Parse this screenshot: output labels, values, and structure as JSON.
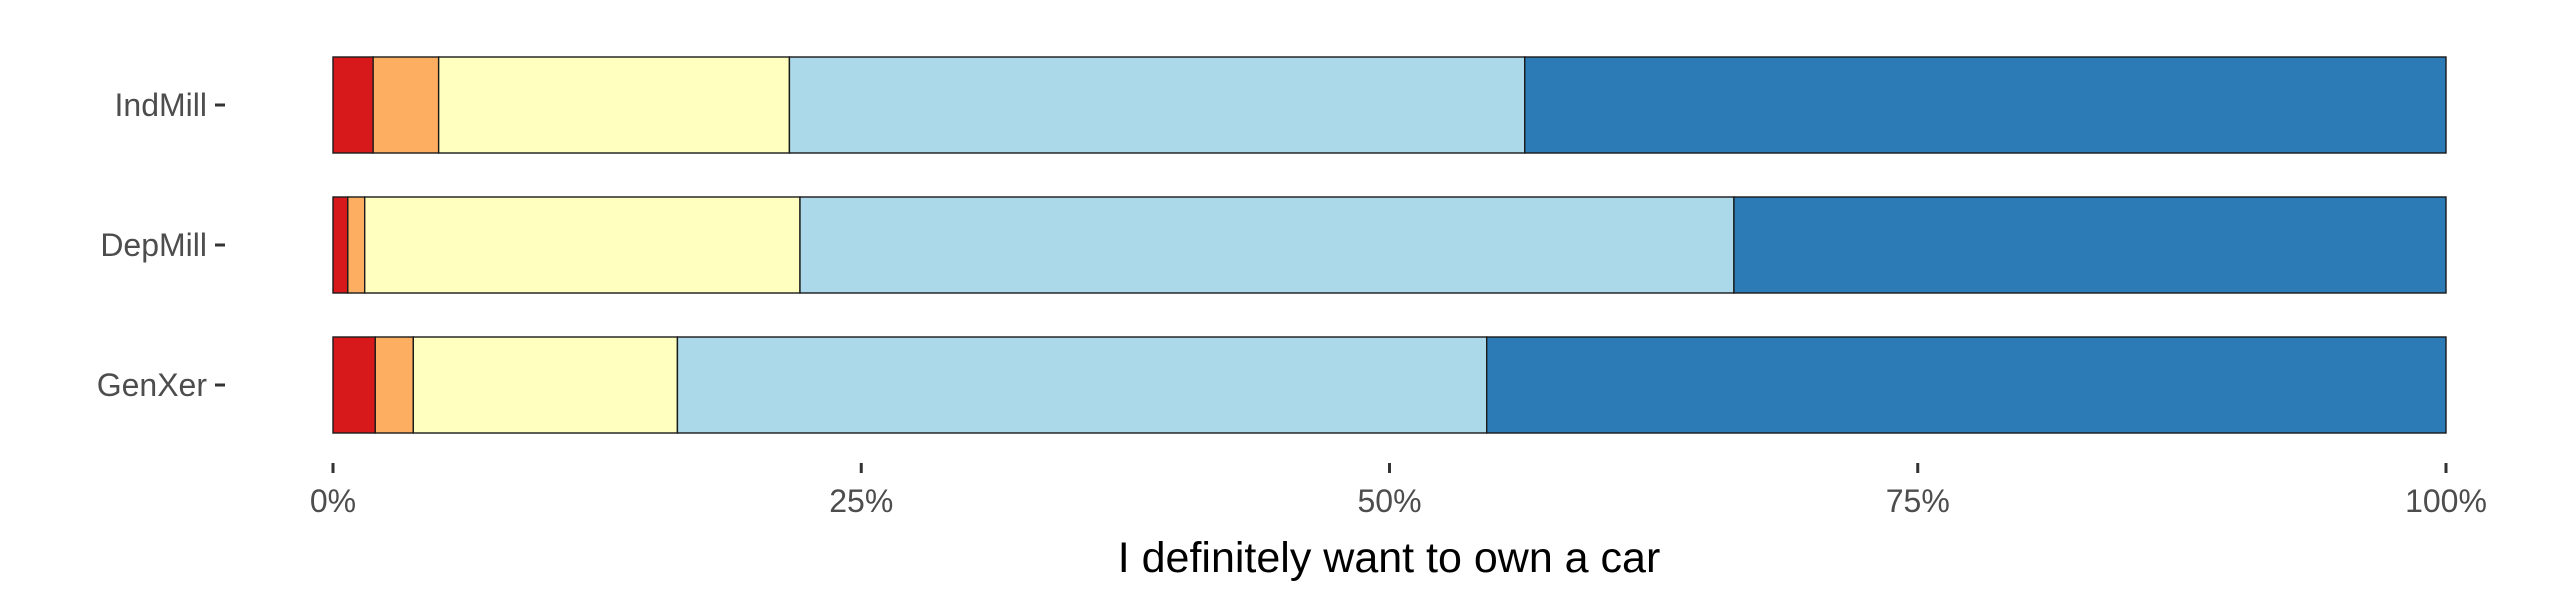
{
  "chart_data": {
    "type": "bar",
    "orientation": "horizontal",
    "stacked": "percent",
    "xlabel": "I definitely want to own a car",
    "ylabel": "",
    "xlim": [
      0,
      100
    ],
    "x_ticks": [
      0,
      25,
      50,
      75,
      100
    ],
    "x_tick_labels": [
      "0%",
      "25%",
      "50%",
      "75%",
      "100%"
    ],
    "categories": [
      "IndMill",
      "DepMill",
      "GenXer"
    ],
    "series": [
      {
        "color": "#d7191c",
        "values": [
          1.9,
          0.7,
          2.0
        ]
      },
      {
        "color": "#fdae61",
        "values": [
          3.1,
          0.8,
          1.8
        ]
      },
      {
        "color": "#ffffbf",
        "values": [
          16.6,
          20.6,
          12.5
        ]
      },
      {
        "color": "#abd9e9",
        "values": [
          34.8,
          44.2,
          38.3
        ]
      },
      {
        "color": "#2c7bb6",
        "values": [
          43.6,
          33.7,
          45.4
        ]
      }
    ],
    "grid": false,
    "legend": "none"
  }
}
